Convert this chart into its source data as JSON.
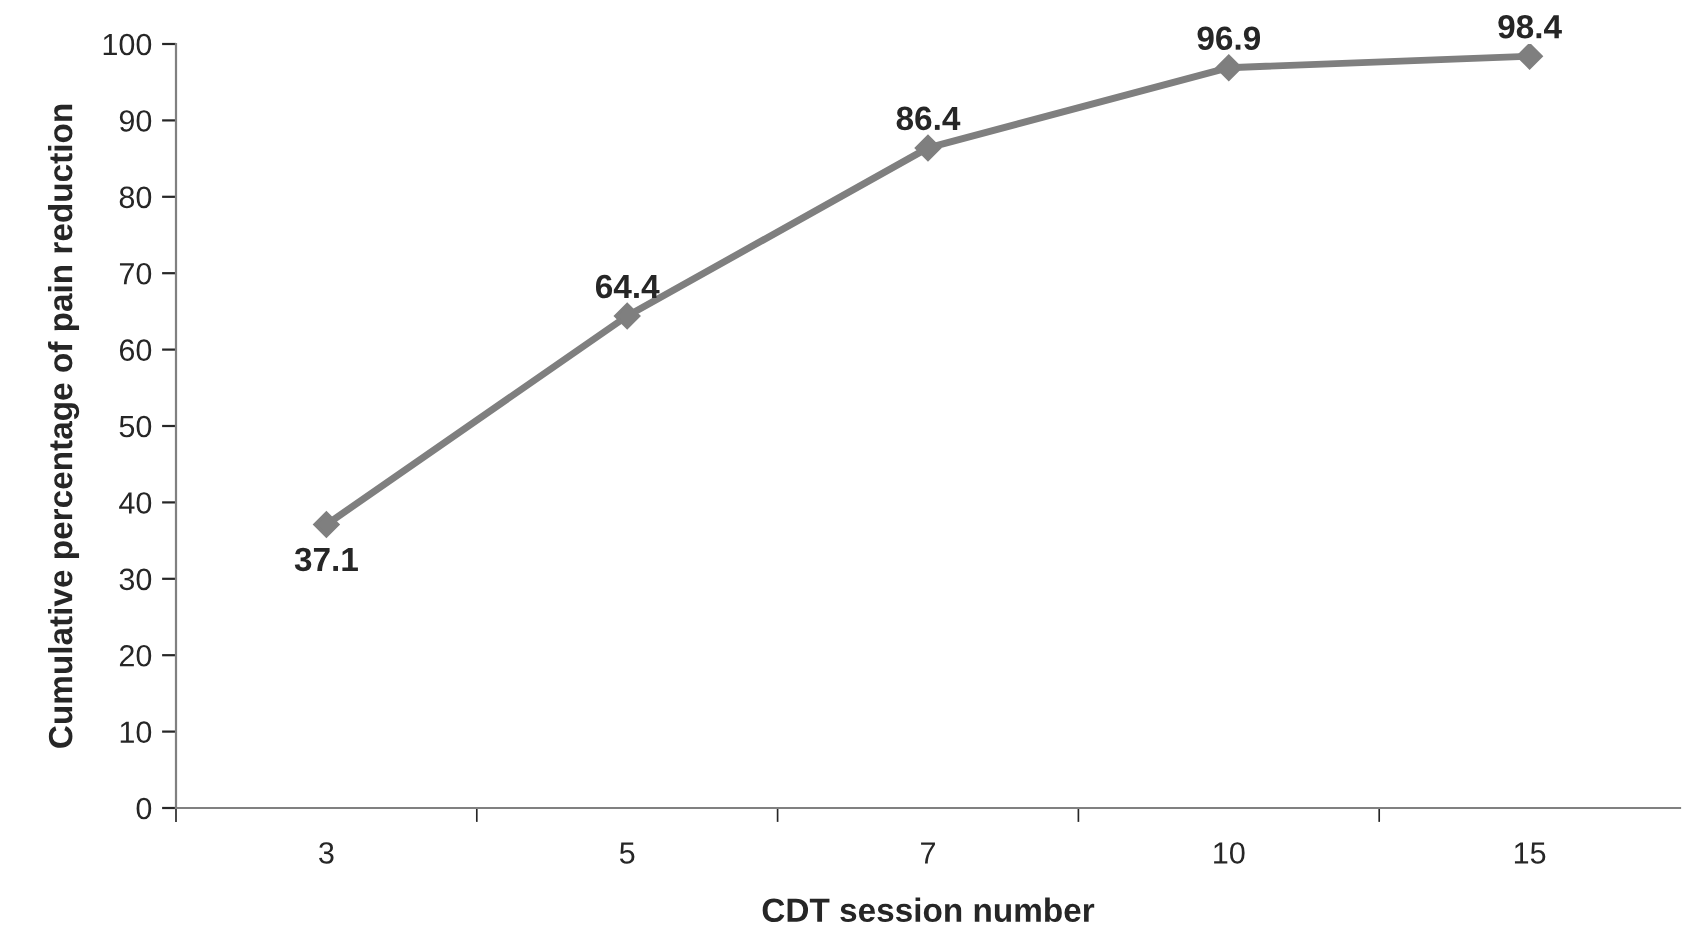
{
  "chart_data": {
    "type": "line",
    "xlabel": "CDT session number",
    "ylabel": "Cumulative percentage of pain reduction",
    "categories": [
      "3",
      "5",
      "7",
      "10",
      "15"
    ],
    "series": [
      {
        "color": "#7f7f7f",
        "values": [
          37.1,
          64.4,
          86.4,
          96.9,
          98.4
        ]
      }
    ],
    "ylim": [
      0,
      100
    ],
    "yticks": [
      0,
      10,
      20,
      30,
      40,
      50,
      60,
      70,
      80,
      90,
      100
    ],
    "grid": false,
    "legend": false,
    "marker": "diamond",
    "line_style": "solid",
    "data_labels": true
  }
}
